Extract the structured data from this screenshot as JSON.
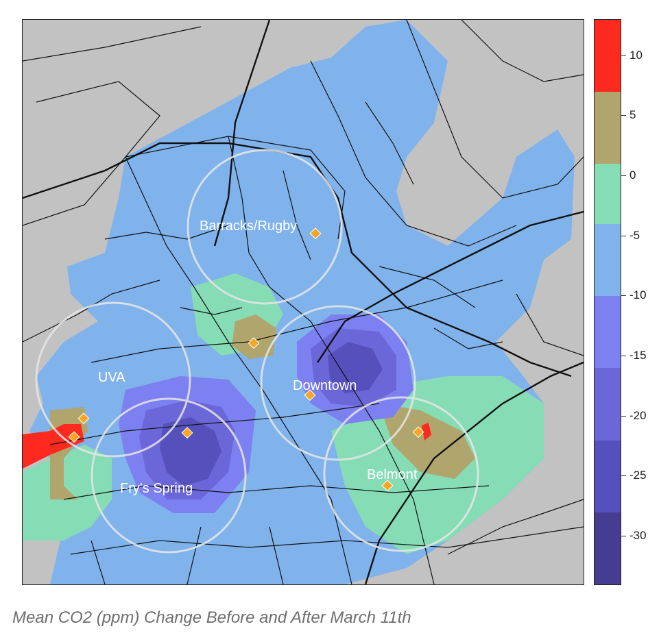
{
  "caption": "Mean CO2 (ppm) Change Before and After March 11th",
  "map": {
    "labels": [
      {
        "key": "barracks",
        "text": "Barracks/Rugby"
      },
      {
        "key": "uva",
        "text": "UVA"
      },
      {
        "key": "downtown",
        "text": "Downtown"
      },
      {
        "key": "frys",
        "text": "Fry's Spring"
      },
      {
        "key": "belmont",
        "text": "Belmont"
      }
    ],
    "sensor_marker_color": "#f5a623",
    "circle_color": "#e6e6e6",
    "background_color": "#c2c2c2"
  },
  "colorbar": {
    "min": -34,
    "max": 13,
    "tick_labels": [
      "10",
      "5",
      "0",
      "-5",
      "-10",
      "-15",
      "-20",
      "-25",
      "-30"
    ],
    "tick_values": [
      10,
      5,
      0,
      -5,
      -10,
      -15,
      -20,
      -25,
      -30
    ],
    "bins": [
      {
        "from": 7,
        "to": 13,
        "color": "#ff2a1f"
      },
      {
        "from": 1,
        "to": 7,
        "color": "#b0a56c"
      },
      {
        "from": -4,
        "to": 1,
        "color": "#86dcb4"
      },
      {
        "from": -10,
        "to": -4,
        "color": "#80b2ec"
      },
      {
        "from": -16,
        "to": -10,
        "color": "#7d80f0"
      },
      {
        "from": -22,
        "to": -16,
        "color": "#6b67d8"
      },
      {
        "from": -28,
        "to": -22,
        "color": "#5550bb"
      },
      {
        "from": -34,
        "to": -28,
        "color": "#463d92"
      }
    ]
  }
}
